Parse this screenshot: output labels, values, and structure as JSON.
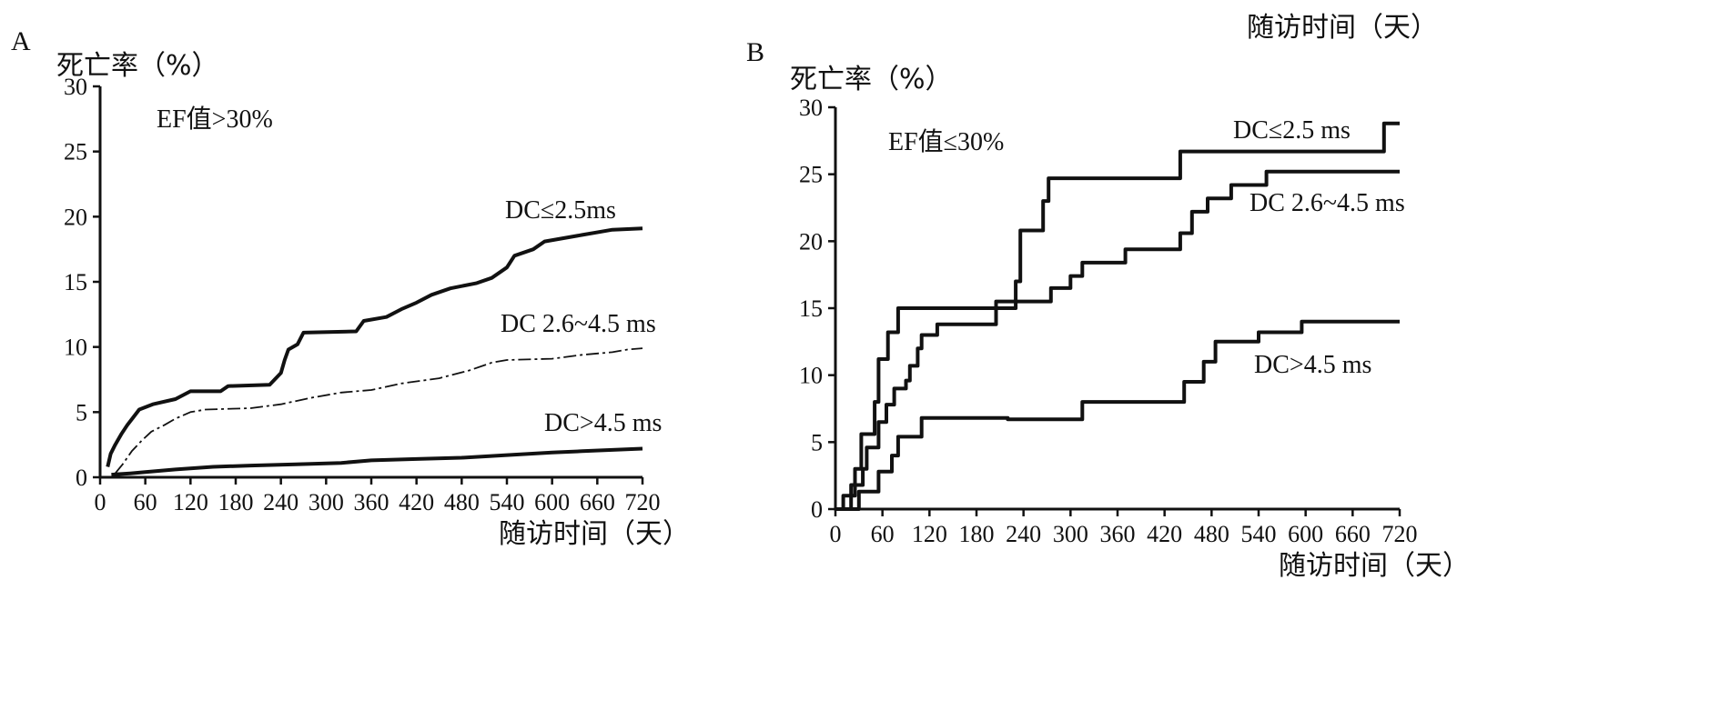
{
  "chart_data": [
    {
      "type": "line",
      "panel_label": "A",
      "ylabel": "死亡率（%）",
      "xlabel": "随访时间（天）",
      "annotation": "EF值>30%",
      "xlim": [
        0,
        720
      ],
      "ylim": [
        0,
        30
      ],
      "x_ticks": [
        0,
        60,
        120,
        180,
        240,
        300,
        360,
        420,
        480,
        540,
        600,
        660,
        720
      ],
      "y_ticks": [
        0,
        5,
        10,
        15,
        20,
        25,
        30
      ],
      "series": [
        {
          "name": "DC≤2.5ms",
          "style": "thick",
          "points": [
            [
              10,
              0.8
            ],
            [
              14,
              1.8
            ],
            [
              20,
              2.5
            ],
            [
              28,
              3.3
            ],
            [
              36,
              4.0
            ],
            [
              44,
              4.6
            ],
            [
              52,
              5.2
            ],
            [
              70,
              5.6
            ],
            [
              100,
              6.0
            ],
            [
              120,
              6.6
            ],
            [
              160,
              6.6
            ],
            [
              170,
              7.0
            ],
            [
              225,
              7.1
            ],
            [
              240,
              8.0
            ],
            [
              245,
              9.0
            ],
            [
              250,
              9.8
            ],
            [
              262,
              10.2
            ],
            [
              270,
              11.1
            ],
            [
              340,
              11.2
            ],
            [
              350,
              12.0
            ],
            [
              380,
              12.3
            ],
            [
              400,
              12.9
            ],
            [
              420,
              13.4
            ],
            [
              440,
              14.0
            ],
            [
              465,
              14.5
            ],
            [
              500,
              14.9
            ],
            [
              520,
              15.3
            ],
            [
              540,
              16.1
            ],
            [
              550,
              17.0
            ],
            [
              575,
              17.5
            ],
            [
              590,
              18.1
            ],
            [
              640,
              18.6
            ],
            [
              680,
              19.0
            ],
            [
              720,
              19.1
            ]
          ]
        },
        {
          "name": "DC 2.6~4.5 ms",
          "style": "thin-dashed",
          "points": [
            [
              20,
              0.3
            ],
            [
              30,
              1.0
            ],
            [
              42,
              2.0
            ],
            [
              55,
              2.8
            ],
            [
              68,
              3.5
            ],
            [
              85,
              4.0
            ],
            [
              100,
              4.5
            ],
            [
              120,
              5.0
            ],
            [
              140,
              5.2
            ],
            [
              200,
              5.3
            ],
            [
              240,
              5.6
            ],
            [
              280,
              6.1
            ],
            [
              320,
              6.5
            ],
            [
              360,
              6.7
            ],
            [
              400,
              7.2
            ],
            [
              450,
              7.6
            ],
            [
              490,
              8.2
            ],
            [
              520,
              8.8
            ],
            [
              540,
              9.0
            ],
            [
              600,
              9.1
            ],
            [
              640,
              9.4
            ],
            [
              680,
              9.6
            ],
            [
              700,
              9.8
            ],
            [
              720,
              9.9
            ]
          ]
        },
        {
          "name": "DC>4.5 ms",
          "style": "thick",
          "points": [
            [
              15,
              0.2
            ],
            [
              40,
              0.3
            ],
            [
              60,
              0.4
            ],
            [
              100,
              0.6
            ],
            [
              150,
              0.8
            ],
            [
              200,
              0.9
            ],
            [
              260,
              1.0
            ],
            [
              320,
              1.1
            ],
            [
              360,
              1.3
            ],
            [
              420,
              1.4
            ],
            [
              480,
              1.5
            ],
            [
              540,
              1.7
            ],
            [
              600,
              1.9
            ],
            [
              640,
              2.0
            ],
            [
              680,
              2.1
            ],
            [
              720,
              2.2
            ]
          ]
        }
      ]
    },
    {
      "type": "line",
      "panel_label": "B",
      "ylabel": "死亡率（%）",
      "xlabel": "随访时间（天）",
      "annotation": "EF值≤30%",
      "xlim": [
        0,
        720
      ],
      "ylim": [
        0,
        30
      ],
      "x_ticks": [
        0,
        60,
        120,
        180,
        240,
        300,
        360,
        420,
        480,
        540,
        600,
        660,
        720
      ],
      "y_ticks": [
        0,
        5,
        10,
        15,
        20,
        25,
        30
      ],
      "series": [
        {
          "name": "DC≤2.5 ms",
          "style": "thick",
          "points": [
            [
              0,
              0
            ],
            [
              10,
              0
            ],
            [
              10,
              1.0
            ],
            [
              25,
              1.0
            ],
            [
              25,
              3.0
            ],
            [
              33,
              3.0
            ],
            [
              33,
              5.6
            ],
            [
              50,
              5.6
            ],
            [
              50,
              8.0
            ],
            [
              55,
              8.0
            ],
            [
              55,
              11.2
            ],
            [
              67,
              11.2
            ],
            [
              67,
              13.2
            ],
            [
              80,
              13.2
            ],
            [
              80,
              15.0
            ],
            [
              230,
              15.0
            ],
            [
              230,
              17.0
            ],
            [
              236,
              17.0
            ],
            [
              236,
              20.8
            ],
            [
              265,
              20.8
            ],
            [
              265,
              23.0
            ],
            [
              272,
              23.0
            ],
            [
              272,
              24.7
            ],
            [
              440,
              24.7
            ],
            [
              440,
              26.7
            ],
            [
              700,
              26.7
            ],
            [
              700,
              28.8
            ],
            [
              720,
              28.8
            ]
          ]
        },
        {
          "name": "DC 2.6~4.5 ms",
          "style": "thick",
          "points": [
            [
              0,
              0
            ],
            [
              20,
              0
            ],
            [
              20,
              1.8
            ],
            [
              35,
              1.8
            ],
            [
              35,
              3.0
            ],
            [
              40,
              3.0
            ],
            [
              40,
              4.6
            ],
            [
              55,
              4.6
            ],
            [
              55,
              6.5
            ],
            [
              65,
              6.5
            ],
            [
              65,
              7.8
            ],
            [
              75,
              7.8
            ],
            [
              75,
              9.0
            ],
            [
              90,
              9.0
            ],
            [
              90,
              9.6
            ],
            [
              95,
              9.6
            ],
            [
              95,
              10.7
            ],
            [
              105,
              10.7
            ],
            [
              105,
              12.0
            ],
            [
              110,
              12.0
            ],
            [
              110,
              13.0
            ],
            [
              130,
              13.0
            ],
            [
              130,
              13.8
            ],
            [
              205,
              13.8
            ],
            [
              205,
              15.5
            ],
            [
              275,
              15.5
            ],
            [
              275,
              16.5
            ],
            [
              300,
              16.5
            ],
            [
              300,
              17.4
            ],
            [
              315,
              17.4
            ],
            [
              315,
              18.4
            ],
            [
              370,
              18.4
            ],
            [
              370,
              19.4
            ],
            [
              440,
              19.4
            ],
            [
              440,
              20.6
            ],
            [
              455,
              20.6
            ],
            [
              455,
              22.2
            ],
            [
              475,
              22.2
            ],
            [
              475,
              23.2
            ],
            [
              505,
              23.2
            ],
            [
              505,
              24.2
            ],
            [
              550,
              24.2
            ],
            [
              550,
              25.2
            ],
            [
              720,
              25.2
            ]
          ]
        },
        {
          "name": "DC>4.5 ms",
          "style": "thick",
          "points": [
            [
              0,
              0
            ],
            [
              30,
              0
            ],
            [
              30,
              1.3
            ],
            [
              55,
              1.3
            ],
            [
              55,
              2.8
            ],
            [
              72,
              2.8
            ],
            [
              72,
              4.0
            ],
            [
              80,
              4.0
            ],
            [
              80,
              5.4
            ],
            [
              110,
              5.4
            ],
            [
              110,
              6.8
            ],
            [
              220,
              6.8
            ],
            [
              220,
              6.7
            ],
            [
              315,
              6.7
            ],
            [
              315,
              8.0
            ],
            [
              445,
              8.0
            ],
            [
              445,
              9.5
            ],
            [
              470,
              9.5
            ],
            [
              470,
              11.0
            ],
            [
              485,
              11.0
            ],
            [
              485,
              12.5
            ],
            [
              540,
              12.5
            ],
            [
              540,
              13.2
            ],
            [
              595,
              13.2
            ],
            [
              595,
              14.0
            ],
            [
              720,
              14.0
            ]
          ]
        }
      ]
    }
  ],
  "labels": {
    "A": {
      "series_labels": [
        "DC≤2.5ms",
        "DC 2.6~4.5 ms",
        "DC>4.5 ms"
      ]
    },
    "B": {
      "top_right_caption": "随访时间（天）",
      "series_labels": [
        "DC≤2.5 ms",
        "DC 2.6~4.5 ms",
        "DC>4.5 ms"
      ]
    }
  }
}
